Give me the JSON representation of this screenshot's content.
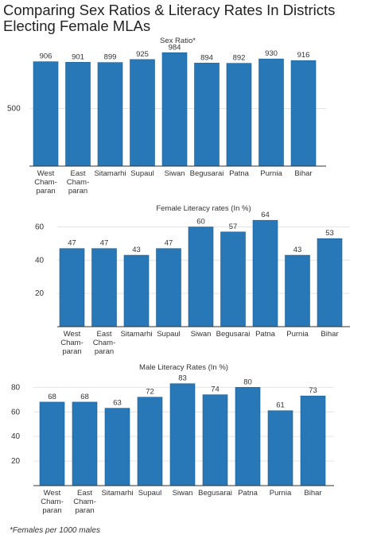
{
  "title": "Comparing Sex Ratios & Literacy Rates In Districts Electing Female MLAs",
  "footnote": "*Females per 1000 males",
  "colors": {
    "bar": "#2878b8",
    "bar_edge": "#1d5c8f",
    "grid": "#e4e4e4",
    "axis": "#333333",
    "text": "#333333"
  },
  "chart_data": [
    {
      "type": "bar",
      "title": "Sex Ratio*",
      "categories": [
        [
          "West",
          "Cham-",
          "paran"
        ],
        [
          "East",
          "Cham-",
          "paran"
        ],
        [
          "Sitamarhi"
        ],
        [
          "Supaul"
        ],
        [
          "Siwan"
        ],
        [
          "Begusarai"
        ],
        [
          "Patna"
        ],
        [
          "Purnia"
        ],
        [
          "Bihar"
        ]
      ],
      "values": [
        906,
        901,
        899,
        925,
        984,
        894,
        892,
        930,
        916
      ],
      "ylim": [
        0,
        1000
      ],
      "yticks": [
        500
      ],
      "grid": true
    },
    {
      "type": "bar",
      "title": "Female Literacy rates (In %)",
      "categories": [
        [
          "West",
          "Cham-",
          "paran"
        ],
        [
          "East",
          "Cham-",
          "paran"
        ],
        [
          "Sitamarhi"
        ],
        [
          "Supaul"
        ],
        [
          "Siwan"
        ],
        [
          "Begusarai"
        ],
        [
          "Patna"
        ],
        [
          "Purnia"
        ],
        [
          "Bihar"
        ]
      ],
      "values": [
        47,
        47,
        43,
        47,
        60,
        57,
        64,
        43,
        53
      ],
      "ylim": [
        0,
        66
      ],
      "yticks": [
        20,
        40,
        60
      ],
      "grid": true
    },
    {
      "type": "bar",
      "title": "Male Literacy Rates (In %)",
      "categories": [
        [
          "West",
          "Cham-",
          "paran"
        ],
        [
          "East",
          "Cham-",
          "paran"
        ],
        [
          "Sitamarhi"
        ],
        [
          "Supaul"
        ],
        [
          "Siwan"
        ],
        [
          "Begusarai"
        ],
        [
          "Patna"
        ],
        [
          "Purnia"
        ],
        [
          "Bihar"
        ]
      ],
      "values": [
        68,
        68,
        63,
        72,
        83,
        74,
        80,
        61,
        73
      ],
      "ylim": [
        0,
        88
      ],
      "yticks": [
        20,
        40,
        60,
        80
      ],
      "grid": true
    }
  ]
}
